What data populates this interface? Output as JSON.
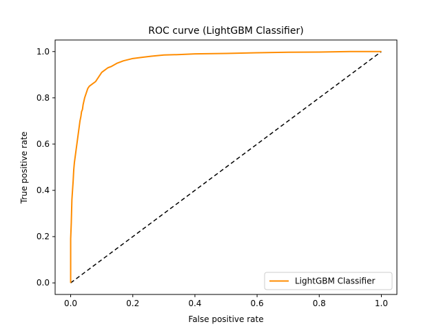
{
  "chart_data": {
    "type": "line",
    "title": "ROC curve (LightGBM Classifier)",
    "xlabel": "False positive rate",
    "ylabel": "True positive rate",
    "xlim": [
      -0.05,
      1.05
    ],
    "ylim": [
      -0.05,
      1.05
    ],
    "xticks": [
      "0.0",
      "0.2",
      "0.4",
      "0.6",
      "0.8",
      "1.0"
    ],
    "yticks": [
      "0.0",
      "0.2",
      "0.4",
      "0.6",
      "0.8",
      "1.0"
    ],
    "grid": false,
    "legend_position": "lower-right",
    "series": [
      {
        "name": "LightGBM Classifier",
        "color": "#ff8c00",
        "style": "solid",
        "x": [
          0.0,
          0.0,
          0.002,
          0.004,
          0.006,
          0.008,
          0.01,
          0.012,
          0.015,
          0.018,
          0.02,
          0.022,
          0.025,
          0.028,
          0.03,
          0.033,
          0.035,
          0.038,
          0.04,
          0.045,
          0.05,
          0.055,
          0.06,
          0.07,
          0.08,
          0.09,
          0.1,
          0.11,
          0.12,
          0.13,
          0.15,
          0.17,
          0.2,
          0.23,
          0.26,
          0.3,
          0.35,
          0.4,
          0.5,
          0.6,
          0.7,
          0.8,
          0.9,
          1.0
        ],
        "y": [
          0.0,
          0.19,
          0.26,
          0.36,
          0.4,
          0.44,
          0.49,
          0.52,
          0.55,
          0.58,
          0.6,
          0.62,
          0.65,
          0.68,
          0.7,
          0.72,
          0.74,
          0.75,
          0.77,
          0.8,
          0.82,
          0.84,
          0.85,
          0.86,
          0.87,
          0.89,
          0.91,
          0.92,
          0.93,
          0.935,
          0.95,
          0.96,
          0.97,
          0.975,
          0.98,
          0.985,
          0.987,
          0.99,
          0.992,
          0.995,
          0.997,
          0.998,
          1.0,
          1.0
        ]
      },
      {
        "name": "",
        "color": "#000000",
        "style": "dashed",
        "x": [
          0.0,
          1.0
        ],
        "y": [
          0.0,
          1.0
        ]
      }
    ]
  }
}
